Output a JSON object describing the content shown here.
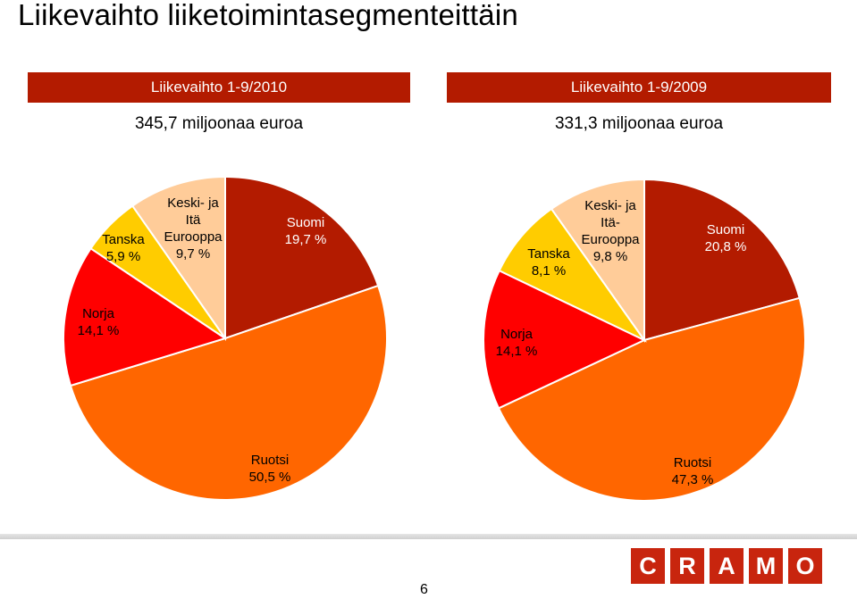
{
  "page": {
    "title": "Liikevaihto liiketoimintasegmenteittäin",
    "page_number": "6",
    "logo_text": "CRAMO"
  },
  "charts_header": [
    {
      "banner": "Liikevaihto 1-9/2010",
      "subtitle": "345,7 miljoonaa euroa"
    },
    {
      "banner": "Liikevaihto 1-9/2009",
      "subtitle": "331,3 miljoonaa euroa"
    }
  ],
  "chart_data": [
    {
      "type": "pie",
      "title": "Liikevaihto 1-9/2010",
      "subtitle": "345,7 miljoonaa euroa",
      "slices": [
        {
          "name": "Suomi",
          "value": 19.7,
          "label_lines": [
            "Suomi",
            "19,7 %"
          ],
          "color": "#b31b00"
        },
        {
          "name": "Ruotsi",
          "value": 50.5,
          "label_lines": [
            "Ruotsi",
            "50,5 %"
          ],
          "color": "#ff6600"
        },
        {
          "name": "Norja",
          "value": 14.1,
          "label_lines": [
            "Norja",
            "14,1 %"
          ],
          "color": "#ff0000"
        },
        {
          "name": "Tanska",
          "value": 5.9,
          "label_lines": [
            "Tanska",
            "5,9 %"
          ],
          "color": "#ffcc00"
        },
        {
          "name": "Keski- ja Itä Eurooppa",
          "value": 9.7,
          "label_lines": [
            "Keski-  ja",
            "Itä",
            "Eurooppa",
            "9,7 %"
          ],
          "color": "#ffcc99"
        }
      ]
    },
    {
      "type": "pie",
      "title": "Liikevaihto 1-9/2009",
      "subtitle": "331,3 miljoonaa euroa",
      "slices": [
        {
          "name": "Suomi",
          "value": 20.8,
          "label_lines": [
            "Suomi",
            "20,8 %"
          ],
          "color": "#b31b00"
        },
        {
          "name": "Ruotsi",
          "value": 47.3,
          "label_lines": [
            "Ruotsi",
            "47,3 %"
          ],
          "color": "#ff6600"
        },
        {
          "name": "Norja",
          "value": 14.1,
          "label_lines": [
            "Norja",
            "14,1 %"
          ],
          "color": "#ff0000"
        },
        {
          "name": "Tanska",
          "value": 8.1,
          "label_lines": [
            "Tanska",
            "8,1 %"
          ],
          "color": "#ffcc00"
        },
        {
          "name": "Keski- ja Itä-Eurooppa",
          "value": 9.8,
          "label_lines": [
            "Keski- ja",
            "Itä-",
            "Eurooppa",
            "9,8 %"
          ],
          "color": "#ffcc99"
        }
      ]
    }
  ]
}
